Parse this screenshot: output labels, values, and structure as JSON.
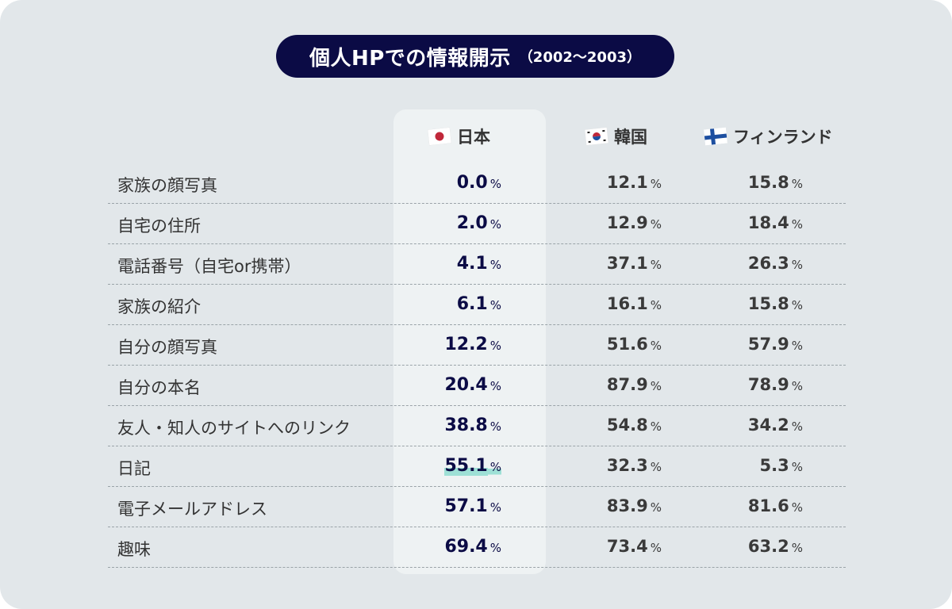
{
  "title": {
    "main": "個人HPでの情報開示",
    "sub": "（2002〜2003）"
  },
  "columns": [
    {
      "name": "日本",
      "flag": "japan-flag-icon"
    },
    {
      "name": "韓国",
      "flag": "korea-flag-icon"
    },
    {
      "name": "フィンランド",
      "flag": "finland-flag-icon"
    }
  ],
  "unit": "%",
  "highlight_color": "#9ee0d6",
  "accent_color": "#0b0b45",
  "rows": [
    {
      "label": "家族の顔写真",
      "japan": "0.0",
      "korea": "12.1",
      "finland": "15.8"
    },
    {
      "label": "自宅の住所",
      "japan": "2.0",
      "korea": "12.9",
      "finland": "18.4"
    },
    {
      "label": "電話番号（自宅or携帯）",
      "japan": "4.1",
      "korea": "37.1",
      "finland": "26.3"
    },
    {
      "label": "家族の紹介",
      "japan": "6.1",
      "korea": "16.1",
      "finland": "15.8"
    },
    {
      "label": "自分の顔写真",
      "japan": "12.2",
      "korea": "51.6",
      "finland": "57.9"
    },
    {
      "label": "自分の本名",
      "japan": "20.4",
      "korea": "87.9",
      "finland": "78.9"
    },
    {
      "label": "友人・知人のサイトへのリンク",
      "japan": "38.8",
      "korea": "54.8",
      "finland": "34.2"
    },
    {
      "label": "日記",
      "japan": "55.1",
      "korea": "32.3",
      "finland": "5.3",
      "highlighted": true
    },
    {
      "label": "電子メールアドレス",
      "japan": "57.1",
      "korea": "83.9",
      "finland": "81.6"
    },
    {
      "label": "趣味",
      "japan": "69.4",
      "korea": "73.4",
      "finland": "63.2"
    }
  ]
}
